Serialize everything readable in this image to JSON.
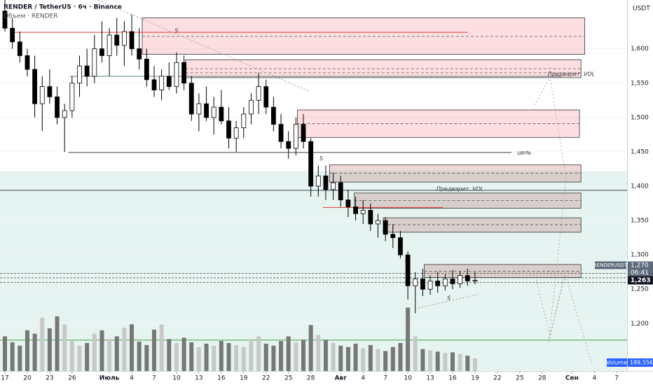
{
  "header": {
    "title": "RENDER / TetherUS · 6ч · Binance",
    "indicator": "Объем · RENDER",
    "currency": "USDT"
  },
  "chart_data": {
    "type": "candlestick",
    "xlim": [
      -0.657,
      83.38
    ],
    "ylim": [
      1131,
      1671
    ],
    "vlim": [
      0,
      1050
    ],
    "xticks": [
      {
        "value": 0,
        "label": "17"
      },
      {
        "value": 3,
        "label": "20"
      },
      {
        "value": 6,
        "label": "23"
      },
      {
        "value": 9,
        "label": "26"
      },
      {
        "value": 14,
        "label": "Июль"
      },
      {
        "value": 17,
        "label": "4"
      },
      {
        "value": 20,
        "label": "7"
      },
      {
        "value": 23,
        "label": "10"
      },
      {
        "value": 26,
        "label": "13"
      },
      {
        "value": 29,
        "label": "16"
      },
      {
        "value": 32,
        "label": "19"
      },
      {
        "value": 35,
        "label": "22"
      },
      {
        "value": 38,
        "label": "25"
      },
      {
        "value": 41,
        "label": "28"
      },
      {
        "value": 45,
        "label": "Авг"
      },
      {
        "value": 48,
        "label": "4"
      },
      {
        "value": 51,
        "label": "7"
      },
      {
        "value": 54,
        "label": "10"
      },
      {
        "value": 57,
        "label": "13"
      },
      {
        "value": 60,
        "label": "16"
      },
      {
        "value": 63,
        "label": "19"
      },
      {
        "value": 66,
        "label": "22"
      },
      {
        "value": 69,
        "label": "25"
      },
      {
        "value": 72,
        "label": "28"
      },
      {
        "value": 76,
        "label": "Сен"
      },
      {
        "value": 79,
        "label": "4"
      },
      {
        "value": 82,
        "label": "7"
      }
    ],
    "yticks": [
      {
        "value": 1200,
        "label": "1,200"
      },
      {
        "value": 1250,
        "label": "1,250"
      },
      {
        "value": 1300,
        "label": "1,300"
      },
      {
        "value": 1350,
        "label": "1,350"
      },
      {
        "value": 1400,
        "label": "1,400"
      },
      {
        "value": 1450,
        "label": "1,450"
      },
      {
        "value": 1500,
        "label": "1,500"
      },
      {
        "value": 1550,
        "label": "1,550"
      },
      {
        "value": 1600,
        "label": "1,600"
      }
    ],
    "candles": [
      [
        0,
        1655,
        1672,
        1625,
        1630
      ],
      [
        1,
        1630,
        1645,
        1600,
        1610
      ],
      [
        2,
        1610,
        1625,
        1580,
        1590
      ],
      [
        3,
        1590,
        1600,
        1560,
        1570
      ],
      [
        4,
        1570,
        1590,
        1500,
        1520
      ],
      [
        5,
        1520,
        1560,
        1480,
        1545
      ],
      [
        6,
        1545,
        1570,
        1520,
        1530
      ],
      [
        7,
        1530,
        1545,
        1490,
        1500
      ],
      [
        8,
        1500,
        1520,
        1450,
        1510
      ],
      [
        9,
        1510,
        1560,
        1500,
        1550
      ],
      [
        10,
        1550,
        1590,
        1530,
        1575
      ],
      [
        11,
        1575,
        1600,
        1545,
        1560
      ],
      [
        12,
        1560,
        1620,
        1550,
        1600
      ],
      [
        13,
        1600,
        1640,
        1580,
        1590
      ],
      [
        14,
        1590,
        1630,
        1560,
        1620
      ],
      [
        15,
        1620,
        1645,
        1590,
        1605
      ],
      [
        16,
        1605,
        1640,
        1575,
        1625
      ],
      [
        17,
        1625,
        1650,
        1590,
        1600
      ],
      [
        18,
        1600,
        1630,
        1570,
        1585
      ],
      [
        19,
        1585,
        1600,
        1545,
        1555
      ],
      [
        20,
        1555,
        1575,
        1530,
        1540
      ],
      [
        21,
        1540,
        1570,
        1525,
        1560
      ],
      [
        22,
        1560,
        1580,
        1540,
        1545
      ],
      [
        23,
        1545,
        1595,
        1535,
        1580
      ],
      [
        24,
        1580,
        1590,
        1540,
        1550
      ],
      [
        25,
        1550,
        1560,
        1495,
        1505
      ],
      [
        26,
        1505,
        1535,
        1480,
        1520
      ],
      [
        27,
        1520,
        1545,
        1495,
        1500
      ],
      [
        28,
        1500,
        1530,
        1475,
        1515
      ],
      [
        29,
        1515,
        1540,
        1490,
        1495
      ],
      [
        30,
        1495,
        1515,
        1455,
        1470
      ],
      [
        31,
        1470,
        1495,
        1450,
        1485
      ],
      [
        32,
        1485,
        1515,
        1470,
        1505
      ],
      [
        33,
        1505,
        1535,
        1490,
        1525
      ],
      [
        34,
        1525,
        1565,
        1505,
        1545
      ],
      [
        35,
        1545,
        1555,
        1505,
        1515
      ],
      [
        36,
        1515,
        1530,
        1480,
        1490
      ],
      [
        37,
        1490,
        1505,
        1455,
        1465
      ],
      [
        38,
        1465,
        1480,
        1440,
        1455
      ],
      [
        39,
        1455,
        1500,
        1445,
        1490
      ],
      [
        40,
        1490,
        1505,
        1455,
        1465
      ],
      [
        41,
        1465,
        1470,
        1385,
        1400
      ],
      [
        42,
        1400,
        1430,
        1385,
        1415
      ],
      [
        43,
        1415,
        1430,
        1380,
        1395
      ],
      [
        44,
        1395,
        1420,
        1380,
        1405
      ],
      [
        45,
        1405,
        1415,
        1370,
        1380
      ],
      [
        46,
        1380,
        1395,
        1355,
        1370
      ],
      [
        47,
        1370,
        1385,
        1350,
        1360
      ],
      [
        48,
        1360,
        1380,
        1345,
        1365
      ],
      [
        49,
        1365,
        1375,
        1335,
        1345
      ],
      [
        50,
        1345,
        1360,
        1325,
        1350
      ],
      [
        51,
        1350,
        1355,
        1320,
        1330
      ],
      [
        52,
        1330,
        1345,
        1310,
        1325
      ],
      [
        53,
        1325,
        1335,
        1295,
        1300
      ],
      [
        54,
        1300,
        1305,
        1235,
        1255
      ],
      [
        55,
        1255,
        1275,
        1215,
        1265
      ],
      [
        56,
        1265,
        1280,
        1240,
        1250
      ],
      [
        57,
        1250,
        1270,
        1242,
        1262
      ],
      [
        58,
        1262,
        1275,
        1245,
        1255
      ],
      [
        59,
        1255,
        1272,
        1248,
        1265
      ],
      [
        60,
        1265,
        1278,
        1250,
        1258
      ],
      [
        61,
        1258,
        1276,
        1252,
        1270
      ],
      [
        62,
        1270,
        1280,
        1255,
        1262
      ],
      [
        63,
        1262,
        1275,
        1257,
        1263
      ]
    ],
    "volumes": [
      520,
      430,
      380,
      610,
      560,
      800,
      640,
      820,
      700,
      450,
      380,
      420,
      560,
      610,
      480,
      520,
      650,
      700,
      440,
      390,
      620,
      700,
      480,
      420,
      500,
      430,
      360,
      410,
      380,
      450,
      420,
      390,
      360,
      480,
      520,
      410,
      380,
      450,
      520,
      430,
      470,
      690,
      540,
      470,
      420,
      380,
      360,
      410,
      340,
      390,
      330,
      300,
      360,
      420,
      950,
      520,
      330,
      310,
      290,
      270,
      280,
      260,
      230,
      190
    ],
    "zones": [
      {
        "from": 18.4,
        "to": 77.7,
        "top": 1645,
        "bottom": 1592,
        "mid": [
          1618
        ]
      },
      {
        "from": 24.2,
        "to": 77.2,
        "top": 1584,
        "bottom": 1558,
        "mid": [
          1571,
          1565
        ]
      },
      {
        "from": 39.2,
        "to": 77.0,
        "top": 1511,
        "bottom": 1471,
        "mid": [
          1491
        ]
      },
      {
        "from": 43.5,
        "to": 77.2,
        "top": 1431,
        "bottom": 1406,
        "mid": [
          1419
        ]
      },
      {
        "from": 46.8,
        "to": 77.2,
        "top": 1390,
        "bottom": 1368,
        "mid": [
          1379
        ]
      },
      {
        "from": 50.7,
        "to": 77.2,
        "top": 1354,
        "bottom": 1333,
        "mid": [
          1344
        ]
      },
      {
        "from": 56.2,
        "to": 77.2,
        "top": 1286,
        "bottom": 1267,
        "mid": [
          1276
        ]
      }
    ],
    "levels": [
      {
        "price": 1624,
        "from": 1.0,
        "to": 62.0,
        "color": "#e53935"
      },
      {
        "price": 1560,
        "from": 8.7,
        "to": 74.5,
        "color": "#607d8b"
      },
      {
        "price": 1449,
        "from": 8.5,
        "to": 67.9,
        "color": "#37474f"
      },
      {
        "price": 1394,
        "from": -0.657,
        "to": 83.38,
        "color": "#37474f"
      },
      {
        "price": 1369,
        "from": 42.6,
        "to": 58.7,
        "color": "#e53935"
      },
      {
        "price": 1176,
        "from": -0.657,
        "to": 83.38,
        "color": "#43a047"
      }
    ],
    "dashed_levels": [
      1273,
      1266.6,
      1260
    ],
    "band_top": 1422,
    "annotations": [
      {
        "text": "S",
        "x": 23,
        "y": 1626
      },
      {
        "text": "цель",
        "x": 69.6,
        "y": 1449
      },
      {
        "text": "Предварит. VOL",
        "x": 75.9,
        "y": 1563
      },
      {
        "text": "Предварит. VOL",
        "x": 61,
        "y": 1396
      },
      {
        "text": "S",
        "x": 42.4,
        "y": 1440
      },
      {
        "text": "S",
        "x": 59.5,
        "y": 1237
      }
    ],
    "price_tags": {
      "symbol": "RENDERUSDT",
      "last": {
        "value": 1270,
        "label": "1,270"
      },
      "countdown": "06:41",
      "close": {
        "value": 1263,
        "label": "1,263"
      },
      "volume_name": "Volume",
      "volume": {
        "value": 189.55,
        "label": "189,55K"
      }
    }
  }
}
